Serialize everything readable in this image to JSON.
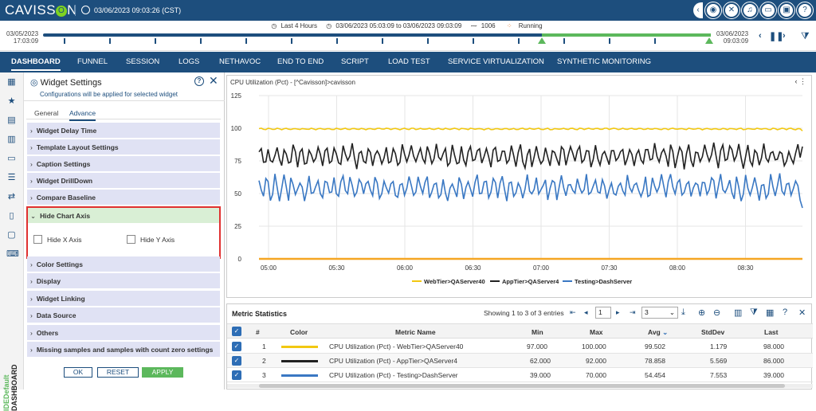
{
  "header": {
    "logo_text_1": "CAVISS",
    "logo_text_o": "O",
    "logo_text_2": "N",
    "datetime": "03/06/2023 09:03:26 (CST)",
    "icons": [
      "collapse-icon",
      "palette-icon",
      "tools-icon",
      "bell-icon",
      "window-icon",
      "monitor-icon",
      "help-icon"
    ]
  },
  "timeline": {
    "preset": "Last 4 Hours",
    "range": "03/06/2023 05:03:09 to 03/06/2023 09:03:09",
    "count": "1006",
    "status": "Running",
    "start_date": "03/05/2023",
    "start_time": "17:03:09",
    "end_date": "03/06/2023",
    "end_time": "09:03:09"
  },
  "nav": {
    "items": [
      "DASHBOARD",
      "FUNNEL",
      "SESSION",
      "LOGS",
      "NETHAVOC",
      "END TO END",
      "SCRIPT",
      "LOAD TEST",
      "SERVICE VIRTUALIZATION",
      "SYNTHETIC MONITORING"
    ],
    "active": "DASHBOARD"
  },
  "sidebar": {
    "label_green": "IDEDefault",
    "label_dark": "DASHBOARD"
  },
  "widget": {
    "title": "Widget Settings",
    "subtitle": "Configurations will be applied for selected widget",
    "tabs": [
      "General",
      "Advance"
    ],
    "active_tab": "Advance",
    "sections": [
      "Widget Delay Time",
      "Template Layout Settings",
      "Caption Settings",
      "Widget DrillDown",
      "Compare Baseline",
      "Hide Chart Axis",
      "Color Settings",
      "Display",
      "Widget Linking",
      "Data Source",
      "Others",
      "Missing samples and samples with count zero settings"
    ],
    "hide_x_label": "Hide X Axis",
    "hide_y_label": "Hide Y Axis",
    "hide_x_checked": false,
    "hide_y_checked": false,
    "buttons": {
      "ok": "OK",
      "reset": "RESET",
      "apply": "APPLY"
    }
  },
  "chart_data": {
    "type": "line",
    "title": "CPU Utilization (Pct) - [^Cavisson]>cavisson",
    "ylim": [
      0,
      125
    ],
    "yticks": [
      0,
      25,
      50,
      75,
      100,
      125
    ],
    "xticks": [
      "05:00",
      "05:30",
      "06:00",
      "06:30",
      "07:00",
      "07:30",
      "08:00",
      "08:30"
    ],
    "legend_position": "bottom",
    "grid": true,
    "series": [
      {
        "name": "WebTier>QAServer40",
        "color": "#f2c811",
        "min": 97.0,
        "max": 100.0,
        "avg": 99.502,
        "last": 98.0
      },
      {
        "name": "AppTier>QAServer4",
        "color": "#222222",
        "min": 62.0,
        "max": 92.0,
        "avg": 78.858,
        "last": 86.0
      },
      {
        "name": "Testing>DashServer",
        "color": "#3a78c3",
        "min": 39.0,
        "max": 70.0,
        "avg": 54.454,
        "last": 39.0
      },
      {
        "name": "",
        "color": "#f5a623",
        "min": 0,
        "max": 0,
        "avg": 0,
        "last": 0
      }
    ]
  },
  "metrics": {
    "title": "Metric Statistics",
    "showing": "Showing 1 to 3 of 3 entries",
    "page": "1",
    "page_size": "3",
    "columns": [
      "#",
      "Color",
      "Metric Name",
      "Min",
      "Max",
      "Avg",
      "StdDev",
      "Last"
    ],
    "rows": [
      {
        "idx": "1",
        "color": "#f2c811",
        "name": "CPU Utilization (Pct) - WebTier>QAServer40",
        "min": "97.000",
        "max": "100.000",
        "avg": "99.502",
        "std": "1.179",
        "last": "98.000"
      },
      {
        "idx": "2",
        "color": "#222222",
        "name": "CPU Utilization (Pct) - AppTier>QAServer4",
        "min": "62.000",
        "max": "92.000",
        "avg": "78.858",
        "std": "5.569",
        "last": "86.000"
      },
      {
        "idx": "3",
        "color": "#3a78c3",
        "name": "CPU Utilization (Pct) - Testing>DashServer",
        "min": "39.000",
        "max": "70.000",
        "avg": "54.454",
        "std": "7.553",
        "last": "39.000"
      }
    ]
  }
}
